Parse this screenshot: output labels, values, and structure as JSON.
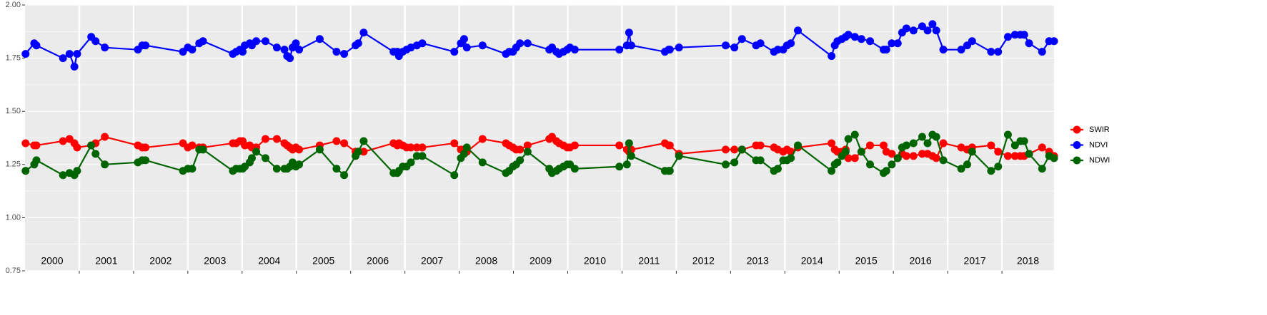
{
  "chart_data": {
    "type": "line",
    "x": [
      2000.01,
      2000.17,
      2000.21,
      2000.7,
      2000.82,
      2000.91,
      2000.96,
      2001.22,
      2001.3,
      2001.47,
      2002.08,
      2002.16,
      2002.22,
      2002.91,
      2003.0,
      2003.08,
      2003.21,
      2003.28,
      2003.83,
      2003.89,
      2003.96,
      2004.01,
      2004.05,
      2004.14,
      2004.18,
      2004.26,
      2004.43,
      2004.64,
      2004.78,
      2004.83,
      2004.88,
      2004.93,
      2004.99,
      2005.05,
      2005.43,
      2005.74,
      2005.88,
      2006.09,
      2006.14,
      2006.24,
      2006.79,
      2006.86,
      2006.89,
      2006.96,
      2007.03,
      2007.11,
      2007.22,
      2007.32,
      2007.91,
      2008.03,
      2008.09,
      2008.14,
      2008.43,
      2008.86,
      2008.92,
      2008.99,
      2009.05,
      2009.12,
      2009.26,
      2009.66,
      2009.71,
      2009.79,
      2009.84,
      2009.92,
      2009.99,
      2010.04,
      2010.13,
      2010.95,
      2011.09,
      2011.13,
      2011.17,
      2011.79,
      2011.86,
      2011.88,
      2012.05,
      2012.91,
      2013.07,
      2013.21,
      2013.47,
      2013.55,
      2013.8,
      2013.87,
      2013.97,
      2014.04,
      2014.11,
      2014.24,
      2014.86,
      2014.92,
      2014.97,
      2015.05,
      2015.12,
      2015.17,
      2015.29,
      2015.41,
      2015.57,
      2015.82,
      2015.87,
      2015.97,
      2016.08,
      2016.16,
      2016.24,
      2016.37,
      2016.53,
      2016.63,
      2016.72,
      2016.79,
      2016.92,
      2017.25,
      2017.36,
      2017.45,
      2017.8,
      2017.93,
      2018.11,
      2018.24,
      2018.34,
      2018.41,
      2018.5,
      2018.74,
      2018.87,
      2018.96
    ],
    "series": [
      {
        "name": "SWIR",
        "color": "#ff0000",
        "values": [
          1.35,
          1.34,
          1.34,
          1.36,
          1.37,
          1.35,
          1.33,
          1.34,
          1.35,
          1.38,
          1.34,
          1.33,
          1.33,
          1.35,
          1.33,
          1.34,
          1.33,
          1.33,
          1.35,
          1.35,
          1.36,
          1.36,
          1.34,
          1.34,
          1.33,
          1.33,
          1.37,
          1.37,
          1.35,
          1.34,
          1.33,
          1.32,
          1.33,
          1.32,
          1.34,
          1.36,
          1.35,
          1.31,
          1.31,
          1.31,
          1.35,
          1.34,
          1.35,
          1.34,
          1.33,
          1.33,
          1.33,
          1.33,
          1.35,
          1.32,
          1.32,
          1.31,
          1.37,
          1.35,
          1.34,
          1.33,
          1.32,
          1.32,
          1.34,
          1.37,
          1.38,
          1.36,
          1.35,
          1.34,
          1.33,
          1.33,
          1.34,
          1.34,
          1.32,
          1.31,
          1.32,
          1.35,
          1.34,
          1.34,
          1.3,
          1.32,
          1.32,
          1.32,
          1.34,
          1.34,
          1.33,
          1.32,
          1.31,
          1.32,
          1.31,
          1.33,
          1.35,
          1.32,
          1.31,
          1.31,
          1.32,
          1.28,
          1.28,
          1.31,
          1.34,
          1.34,
          1.31,
          1.3,
          1.28,
          1.3,
          1.29,
          1.29,
          1.3,
          1.3,
          1.29,
          1.28,
          1.35,
          1.33,
          1.32,
          1.33,
          1.34,
          1.31,
          1.29,
          1.29,
          1.29,
          1.29,
          1.3,
          1.33,
          1.31,
          1.29
        ]
      },
      {
        "name": "NDVI",
        "color": "#0000ff",
        "values": [
          1.77,
          1.82,
          1.81,
          1.75,
          1.77,
          1.71,
          1.77,
          1.85,
          1.83,
          1.8,
          1.79,
          1.81,
          1.81,
          1.78,
          1.8,
          1.79,
          1.82,
          1.83,
          1.77,
          1.78,
          1.79,
          1.78,
          1.81,
          1.82,
          1.81,
          1.83,
          1.83,
          1.8,
          1.79,
          1.76,
          1.75,
          1.8,
          1.82,
          1.79,
          1.84,
          1.78,
          1.77,
          1.81,
          1.82,
          1.87,
          1.78,
          1.78,
          1.76,
          1.78,
          1.79,
          1.8,
          1.81,
          1.82,
          1.78,
          1.82,
          1.84,
          1.8,
          1.81,
          1.77,
          1.78,
          1.78,
          1.8,
          1.82,
          1.82,
          1.79,
          1.8,
          1.78,
          1.77,
          1.78,
          1.79,
          1.8,
          1.79,
          1.79,
          1.81,
          1.87,
          1.81,
          1.78,
          1.79,
          1.79,
          1.8,
          1.81,
          1.8,
          1.84,
          1.81,
          1.82,
          1.78,
          1.79,
          1.79,
          1.81,
          1.82,
          1.88,
          1.76,
          1.81,
          1.83,
          1.84,
          1.85,
          1.86,
          1.85,
          1.84,
          1.83,
          1.79,
          1.79,
          1.82,
          1.82,
          1.87,
          1.89,
          1.88,
          1.9,
          1.88,
          1.91,
          1.88,
          1.79,
          1.79,
          1.81,
          1.83,
          1.78,
          1.78,
          1.85,
          1.86,
          1.86,
          1.86,
          1.82,
          1.78,
          1.83,
          1.83
        ]
      },
      {
        "name": "NDWI",
        "color": "#006400",
        "values": [
          1.22,
          1.25,
          1.27,
          1.2,
          1.21,
          1.2,
          1.22,
          1.34,
          1.3,
          1.25,
          1.26,
          1.27,
          1.27,
          1.22,
          1.23,
          1.23,
          1.32,
          1.32,
          1.22,
          1.23,
          1.23,
          1.23,
          1.24,
          1.26,
          1.28,
          1.31,
          1.28,
          1.23,
          1.23,
          1.23,
          1.24,
          1.26,
          1.24,
          1.25,
          1.32,
          1.23,
          1.2,
          1.29,
          1.31,
          1.36,
          1.21,
          1.21,
          1.22,
          1.24,
          1.24,
          1.26,
          1.29,
          1.29,
          1.2,
          1.28,
          1.3,
          1.33,
          1.26,
          1.21,
          1.22,
          1.24,
          1.25,
          1.27,
          1.31,
          1.23,
          1.21,
          1.22,
          1.23,
          1.24,
          1.25,
          1.25,
          1.23,
          1.24,
          1.25,
          1.35,
          1.29,
          1.22,
          1.22,
          1.22,
          1.29,
          1.25,
          1.26,
          1.32,
          1.27,
          1.27,
          1.22,
          1.23,
          1.27,
          1.27,
          1.28,
          1.34,
          1.22,
          1.25,
          1.26,
          1.29,
          1.31,
          1.37,
          1.39,
          1.31,
          1.25,
          1.21,
          1.22,
          1.25,
          1.28,
          1.33,
          1.34,
          1.35,
          1.38,
          1.35,
          1.39,
          1.38,
          1.27,
          1.23,
          1.25,
          1.31,
          1.22,
          1.24,
          1.39,
          1.34,
          1.36,
          1.36,
          1.3,
          1.23,
          1.29,
          1.28
        ]
      }
    ],
    "xlim": [
      2000,
      2018.96
    ],
    "xticks": [
      2001,
      2002,
      2003,
      2004,
      2005,
      2006,
      2007,
      2008,
      2009,
      2010,
      2011,
      2012,
      2013,
      2014,
      2015,
      2016,
      2017,
      2018
    ],
    "year_labels": [
      "2000",
      "2001",
      "2002",
      "2003",
      "2004",
      "2005",
      "2006",
      "2007",
      "2008",
      "2009",
      "2010",
      "2011",
      "2012",
      "2013",
      "2014",
      "2015",
      "2016",
      "2017",
      "2018"
    ],
    "ylim": [
      0.75,
      2.0
    ],
    "yticks": [
      0.75,
      {
        "value": 1.0,
        "label": "1.00"
      },
      1.25,
      {
        "value": 1.5,
        "label": "1.50"
      },
      1.75,
      {
        "value": 2.0,
        "label": "2.00"
      }
    ],
    "grid": true,
    "legend": "right"
  }
}
